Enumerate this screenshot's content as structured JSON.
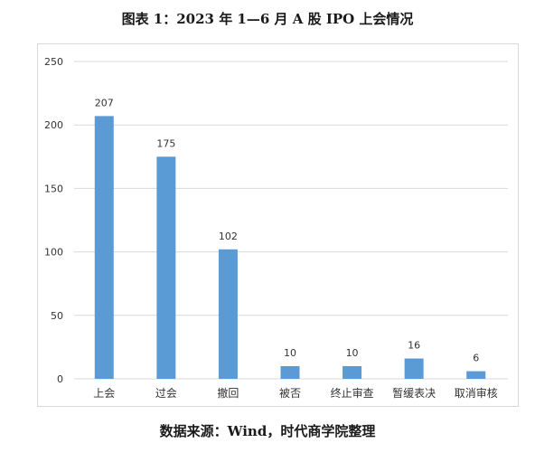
{
  "figure": {
    "title": "图表 1：2023 年 1—6 月 A 股 IPO 上会情况",
    "source": "数据来源：Wind，时代商学院整理"
  },
  "colors": {
    "bar": "#5b9bd5",
    "grid": "#d9d9d9",
    "text": "#333333"
  },
  "chart_data": {
    "type": "bar",
    "categories": [
      "上会",
      "过会",
      "撤回",
      "被否",
      "终止审查",
      "暂缓表决",
      "取消审核"
    ],
    "values": [
      207,
      175,
      102,
      10,
      10,
      16,
      6
    ],
    "ylim": [
      0,
      250
    ],
    "yticks": [
      0,
      50,
      100,
      150,
      200,
      250
    ],
    "data_labels": [
      "207",
      "175",
      "102",
      "10",
      "10",
      "16",
      "6"
    ],
    "grid": true,
    "legend": "none"
  }
}
